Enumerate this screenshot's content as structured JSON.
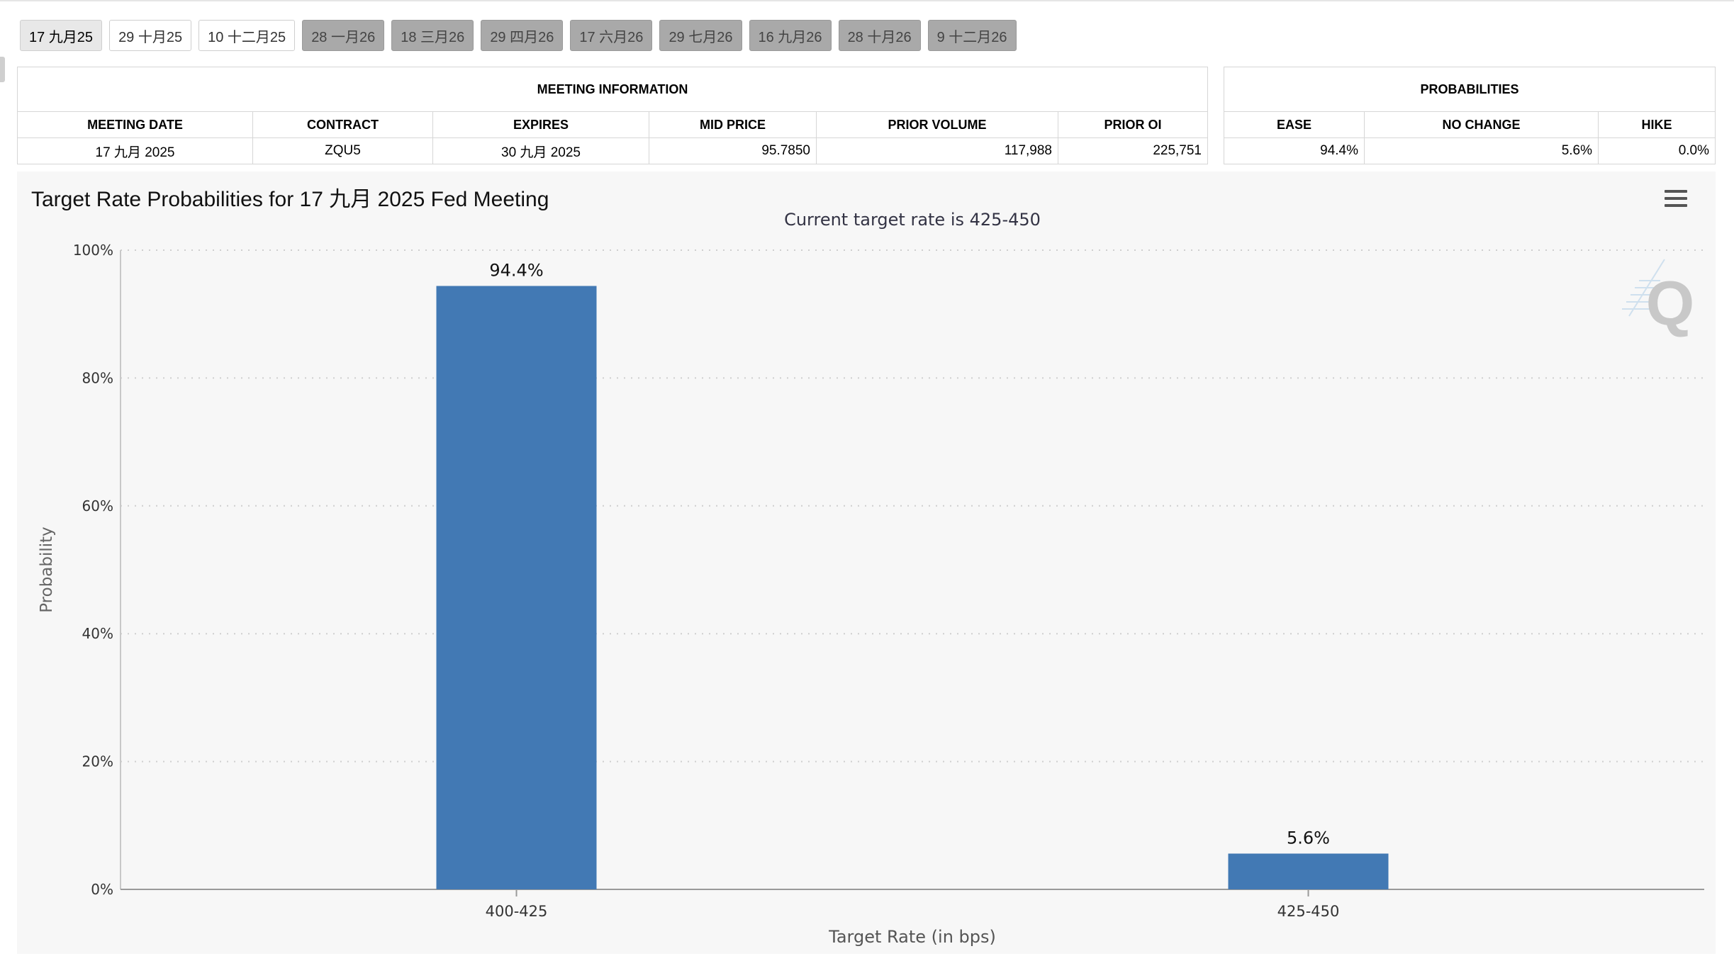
{
  "tabs": [
    {
      "label": "17 九月25",
      "state": "selected"
    },
    {
      "label": "29 十月25",
      "state": "normal"
    },
    {
      "label": "10 十二月25",
      "state": "normal"
    },
    {
      "label": "28 一月26",
      "state": "future"
    },
    {
      "label": "18 三月26",
      "state": "future"
    },
    {
      "label": "29 四月26",
      "state": "future"
    },
    {
      "label": "17 六月26",
      "state": "future"
    },
    {
      "label": "29 七月26",
      "state": "future"
    },
    {
      "label": "16 九月26",
      "state": "future"
    },
    {
      "label": "28 十月26",
      "state": "future"
    },
    {
      "label": "9 十二月26",
      "state": "future"
    }
  ],
  "meeting_info": {
    "caption": "MEETING INFORMATION",
    "headers": [
      "MEETING DATE",
      "CONTRACT",
      "EXPIRES",
      "MID PRICE",
      "PRIOR VOLUME",
      "PRIOR OI"
    ],
    "row": [
      "17 九月 2025",
      "ZQU5",
      "30 九月 2025",
      "95.7850",
      "117,988",
      "225,751"
    ]
  },
  "probabilities": {
    "caption": "PROBABILITIES",
    "headers": [
      "EASE",
      "NO CHANGE",
      "HIKE"
    ],
    "row": [
      "94.4%",
      "5.6%",
      "0.0%"
    ]
  },
  "colors": {
    "bar": "#4279b4",
    "selected_tab": "#e8e8e8",
    "future_tab": "#a9a9a9"
  },
  "chart_data": {
    "type": "bar",
    "title": "Target Rate Probabilities for 17 九月 2025 Fed Meeting",
    "subtitle": "Current target rate is 425-450",
    "xlabel": "Target Rate (in bps)",
    "ylabel": "Probability",
    "categories": [
      "400-425",
      "425-450"
    ],
    "values": [
      94.4,
      5.6
    ],
    "data_labels": [
      "94.4%",
      "5.6%"
    ],
    "ylim": [
      0,
      100
    ],
    "yticks": [
      0,
      20,
      40,
      60,
      80,
      100
    ],
    "ytick_labels": [
      "0%",
      "20%",
      "40%",
      "60%",
      "80%",
      "100%"
    ],
    "grid": true,
    "legend": "none"
  }
}
